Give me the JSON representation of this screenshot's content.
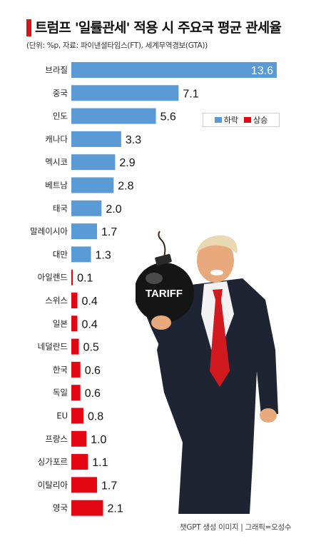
{
  "title": "트럼프 '일률관세' 적용 시 주요국 평균 관세율",
  "subtitle": "(단위: %p, 자료: 파이낸셜타임스(FT), 세계무역경보(GTA))",
  "legend": {
    "down_label": "하락",
    "up_label": "상승",
    "down_color": "#5b9bd5",
    "up_color": "#e30613"
  },
  "illustration": {
    "bomb_label": "TARIFF",
    "description_icon": "man-holding-bomb-illustration"
  },
  "credit": "챗GPT 생성 이미지  |  그래픽=오성수",
  "chart_data": {
    "type": "bar",
    "orientation": "horizontal",
    "categories": [
      "브라질",
      "중국",
      "인도",
      "캐나다",
      "멕시코",
      "베트남",
      "태국",
      "말레이시아",
      "대만",
      "아일랜드",
      "스위스",
      "일본",
      "네덜란드",
      "한국",
      "독일",
      "EU",
      "프랑스",
      "싱가포르",
      "이탈리아",
      "영국"
    ],
    "values": [
      13.6,
      7.1,
      5.6,
      3.3,
      2.9,
      2.8,
      2.0,
      1.7,
      1.3,
      0.1,
      0.4,
      0.4,
      0.5,
      0.6,
      0.6,
      0.8,
      1.0,
      1.1,
      1.7,
      2.1
    ],
    "direction": [
      "하락",
      "하락",
      "하락",
      "하락",
      "하락",
      "하락",
      "하락",
      "하락",
      "하락",
      "상승",
      "상승",
      "상승",
      "상승",
      "상승",
      "상승",
      "상승",
      "상승",
      "상승",
      "상승",
      "상승"
    ],
    "value_labels": [
      "13.6",
      "7.1",
      "5.6",
      "3.3",
      "2.9",
      "2.8",
      "2.0",
      "1.7",
      "1.3",
      "0.1",
      "0.4",
      "0.4",
      "0.5",
      "0.6",
      "0.6",
      "0.8",
      "1.0",
      "1.1",
      "1.7",
      "2.1"
    ],
    "xlim": [
      0,
      13.6
    ],
    "grid": false,
    "legend_position": "right"
  }
}
